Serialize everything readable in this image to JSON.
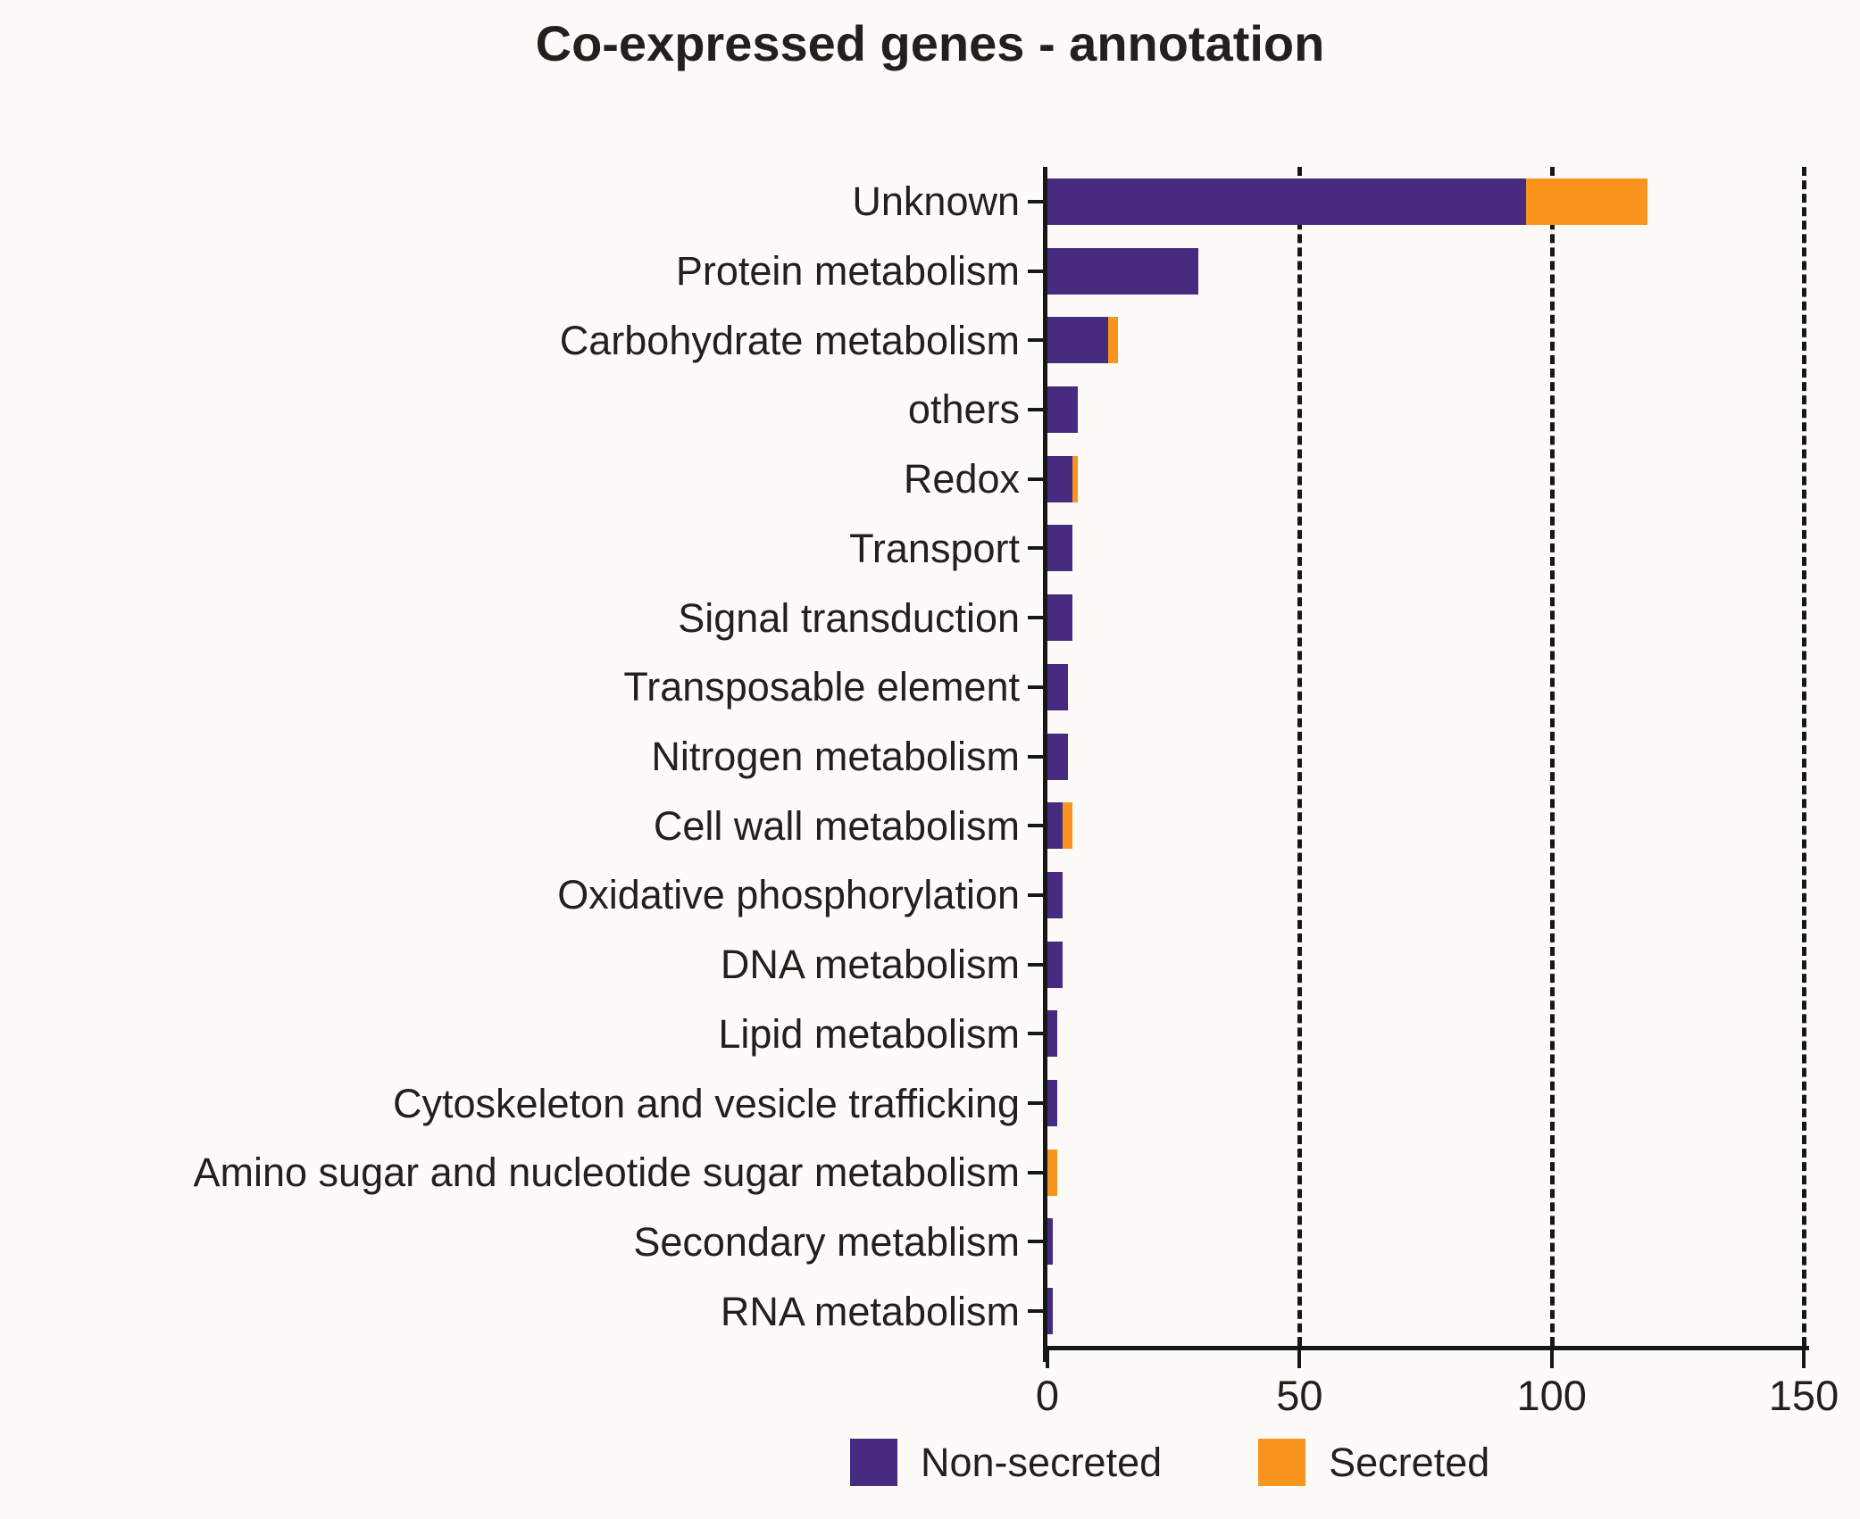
{
  "title": "Co-expressed genes - annotation",
  "legend": {
    "items": [
      {
        "label": "Non-secreted",
        "color": "#472b81"
      },
      {
        "label": "Secreted",
        "color": "#f9951e"
      }
    ]
  },
  "colors": {
    "non_secreted": "#472b81",
    "secreted": "#f9951e",
    "axis": "#171717",
    "background": "#fcfbf8"
  },
  "chart_data": {
    "type": "bar",
    "orientation": "horizontal",
    "stacked": true,
    "title": "Co-expressed genes - annotation",
    "xlabel": "",
    "ylabel": "",
    "xlim": [
      0,
      150
    ],
    "xticks": [
      0,
      50,
      100,
      150
    ],
    "gridlines": {
      "x": [
        50,
        100,
        150
      ],
      "style": "dashed"
    },
    "legend_position": "bottom",
    "categories": [
      "Unknown",
      "Protein metabolism",
      "Carbohydrate metabolism",
      "others",
      "Redox",
      "Transport",
      "Signal transduction",
      "Transposable element",
      "Nitrogen metabolism",
      "Cell wall metabolism",
      "Oxidative phosphorylation",
      "DNA metabolism",
      "Lipid metabolism",
      "Cytoskeleton and vesicle trafficking",
      "Amino sugar and nucleotide sugar metabolism",
      "Secondary metablism",
      "RNA metabolism"
    ],
    "series": [
      {
        "name": "Non-secreted",
        "color": "#472b81",
        "values": [
          95,
          30,
          12,
          6,
          5,
          5,
          5,
          4,
          4,
          3,
          3,
          3,
          2,
          2,
          0,
          1,
          1
        ]
      },
      {
        "name": "Secreted",
        "color": "#f9951e",
        "values": [
          24,
          0,
          2,
          0,
          1,
          0,
          0,
          0,
          0,
          2,
          0,
          0,
          0,
          0,
          2,
          0,
          0
        ]
      }
    ]
  }
}
